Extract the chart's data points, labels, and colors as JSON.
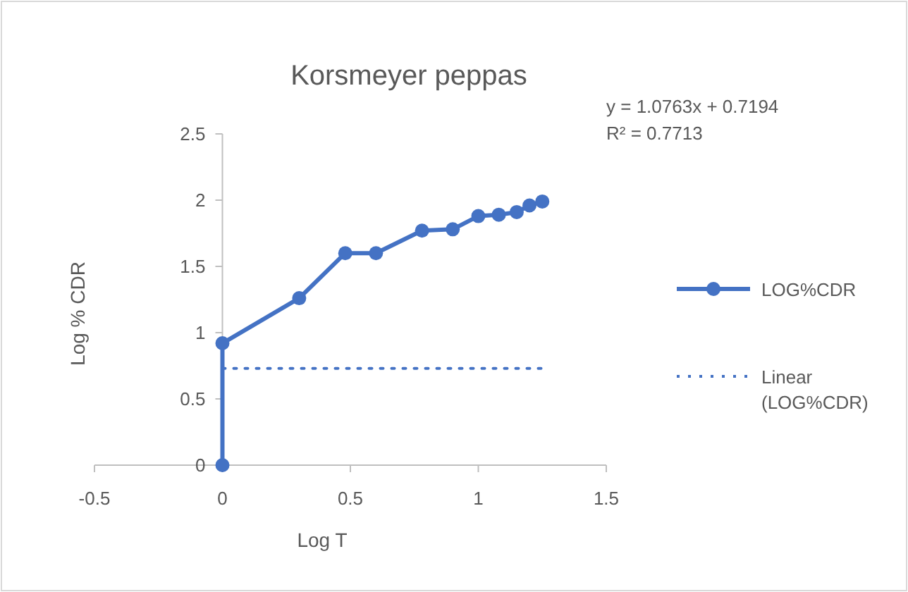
{
  "chart_data": {
    "type": "line",
    "title": "Korsmeyer peppas",
    "xlabel": "Log T",
    "ylabel": "Log % CDR",
    "xlim": [
      -0.5,
      1.5
    ],
    "xticks": [
      -0.5,
      0,
      0.5,
      1,
      1.5
    ],
    "ylim": [
      0,
      2.5
    ],
    "yticks": [
      0,
      0.5,
      1,
      1.5,
      2,
      2.5
    ],
    "grid": false,
    "legend": "right",
    "marker": "circle",
    "annotations": [
      "y = 1.0763x + 0.7194",
      "R² = 0.7713"
    ],
    "series": [
      {
        "name": "LOG%CDR",
        "color": "#4472c4",
        "x": [
          0,
          0,
          0.3,
          0.48,
          0.6,
          0.78,
          0.9,
          1,
          1.08,
          1.15,
          1.2,
          1.25
        ],
        "values": [
          0,
          0.92,
          1.26,
          1.6,
          1.6,
          1.77,
          1.78,
          1.88,
          1.89,
          1.91,
          1.96,
          1.99
        ],
        "line_style": "solid"
      },
      {
        "name": "Linear (LOG%CDR)",
        "color": "#4472c4",
        "x": [
          0,
          1.25
        ],
        "values": [
          0.73,
          0.73
        ],
        "line_style": "dotted",
        "marker": "none"
      }
    ]
  }
}
